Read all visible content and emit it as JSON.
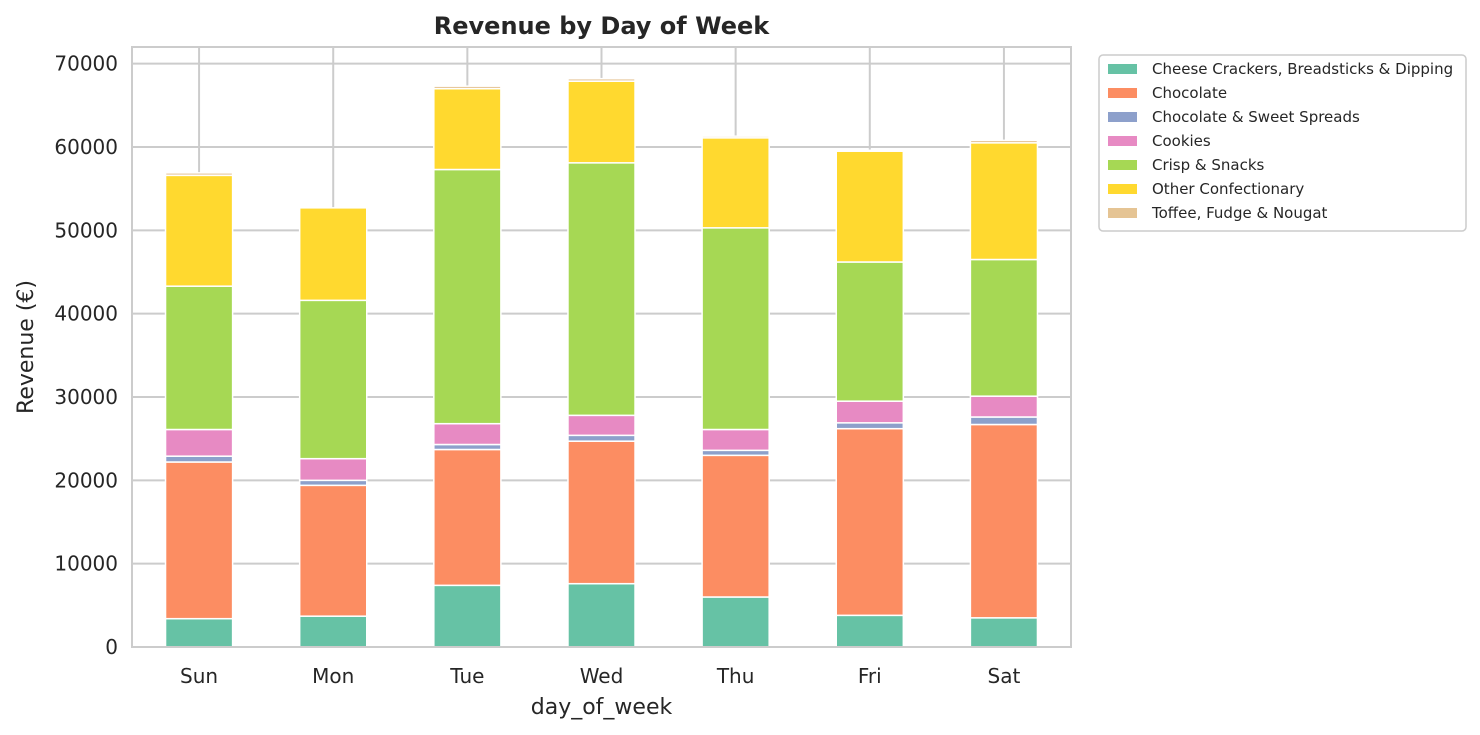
{
  "chart_data": {
    "type": "bar",
    "stacked": true,
    "title": "Revenue by Day of Week",
    "xlabel": "day_of_week",
    "ylabel": "Revenue (€)",
    "categories": [
      "Sun",
      "Mon",
      "Tue",
      "Wed",
      "Thu",
      "Fri",
      "Sat"
    ],
    "ylim": [
      0,
      72000
    ],
    "yticks": [
      0,
      10000,
      20000,
      30000,
      40000,
      50000,
      60000,
      70000
    ],
    "grid": true,
    "legend_position": "outside-top-right",
    "series": [
      {
        "name": "Cheese Crackers, Breadsticks & Dipping",
        "color": "#66c2a5",
        "values": [
          3400,
          3700,
          7400,
          7600,
          6000,
          3800,
          3500
        ]
      },
      {
        "name": "Chocolate",
        "color": "#fc8d62",
        "values": [
          18800,
          15700,
          16300,
          17100,
          17000,
          22400,
          23200
        ]
      },
      {
        "name": "Chocolate & Sweet Spreads",
        "color": "#8da0cb",
        "values": [
          700,
          600,
          600,
          700,
          600,
          700,
          900
        ]
      },
      {
        "name": "Cookies",
        "color": "#e78ac3",
        "values": [
          3200,
          2600,
          2500,
          2400,
          2500,
          2600,
          2500
        ]
      },
      {
        "name": "Crisp & Snacks",
        "color": "#a6d854",
        "values": [
          17200,
          19000,
          30500,
          30300,
          24200,
          16700,
          16400
        ]
      },
      {
        "name": "Other Confectionary",
        "color": "#ffd92f",
        "values": [
          13300,
          11100,
          9700,
          9800,
          10800,
          13300,
          14000
        ]
      },
      {
        "name": "Toffee, Fudge & Nougat",
        "color": "#e5c494",
        "values": [
          300,
          0,
          300,
          300,
          200,
          100,
          300
        ]
      }
    ]
  }
}
